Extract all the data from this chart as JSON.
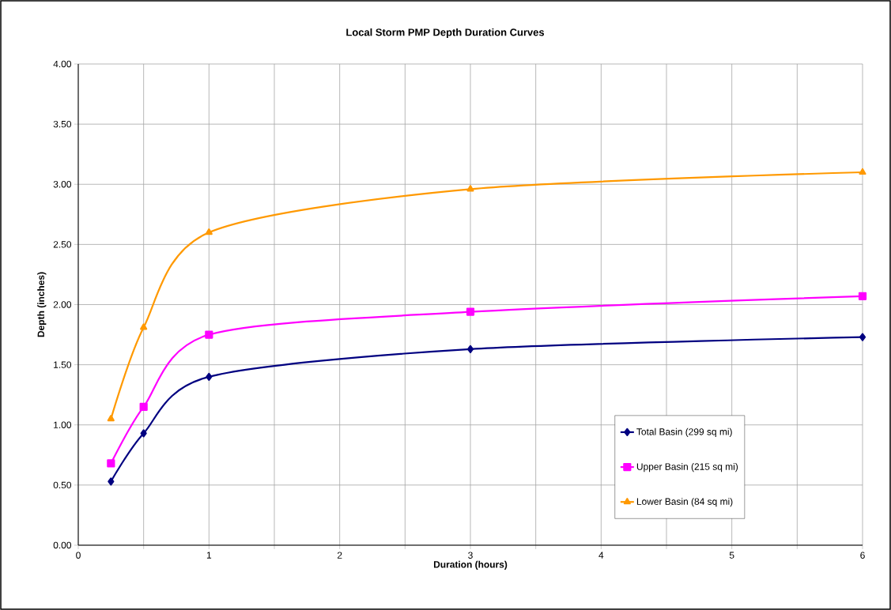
{
  "chart_data": {
    "type": "line",
    "title": "Local Storm PMP Depth Duration Curves",
    "xlabel": "Duration (hours)",
    "ylabel": "Depth (inches)",
    "x": [
      0.25,
      0.5,
      1,
      3,
      6
    ],
    "series": [
      {
        "name": "Total Basin (299 sq mi)",
        "color": "#000080",
        "marker": "diamond",
        "values": [
          0.53,
          0.93,
          1.4,
          1.63,
          1.73
        ]
      },
      {
        "name": "Upper Basin (215 sq mi)",
        "color": "#ff00ff",
        "marker": "square",
        "values": [
          0.68,
          1.15,
          1.75,
          1.94,
          2.07
        ]
      },
      {
        "name": "Lower Basin (84 sq mi)",
        "color": "#ff9900",
        "marker": "triangle",
        "values": [
          1.05,
          1.81,
          2.6,
          2.96,
          3.1
        ]
      }
    ],
    "xlim": [
      0,
      6
    ],
    "xticks": [
      0,
      {
        "value": 0.5,
        "label": null
      },
      1,
      {
        "value": 1.5,
        "label": null
      },
      2,
      {
        "value": 2.5,
        "label": null
      },
      3,
      {
        "value": 3.5,
        "label": null
      },
      4,
      {
        "value": 4.5,
        "label": null
      },
      5,
      {
        "value": 5.5,
        "label": null
      },
      6
    ],
    "ylim": [
      0,
      4
    ],
    "yticks": [
      {
        "value": 0,
        "label": "0.00"
      },
      {
        "value": 0.5,
        "label": "0.50"
      },
      {
        "value": 1,
        "label": "1.00"
      },
      {
        "value": 1.5,
        "label": "1.50"
      },
      {
        "value": 2,
        "label": "2.00"
      },
      {
        "value": 2.5,
        "label": "2.50"
      },
      {
        "value": 3,
        "label": "3.00"
      },
      {
        "value": 3.5,
        "label": "3.50"
      },
      {
        "value": 4,
        "label": "4.00"
      }
    ],
    "grid": true,
    "legend": "bottom right",
    "line_style": "solid"
  }
}
